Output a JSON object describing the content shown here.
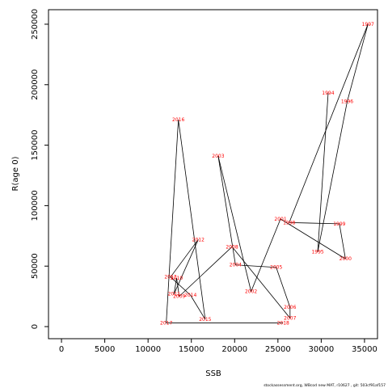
{
  "chart_data": {
    "type": "line",
    "xlabel": "SSB",
    "ylabel": "R(age 0)",
    "xlim": [
      -1500,
      36500
    ],
    "ylim": [
      -10000,
      262000
    ],
    "x_ticks": [
      0,
      5000,
      10000,
      15000,
      20000,
      25000,
      30000,
      35000
    ],
    "y_ticks": [
      0,
      50000,
      100000,
      150000,
      200000,
      250000
    ],
    "line_color": "#000000",
    "label_color": "#ff0000",
    "points": [
      {
        "year": "1994",
        "x": 30800,
        "y": 193000
      },
      {
        "year": "1995",
        "x": 29600,
        "y": 62000
      },
      {
        "year": "1996",
        "x": 33000,
        "y": 186000
      },
      {
        "year": "1997",
        "x": 35400,
        "y": 250000
      },
      {
        "year": "1998",
        "x": 26300,
        "y": 86000
      },
      {
        "year": "1999",
        "x": 32100,
        "y": 85000
      },
      {
        "year": "2000",
        "x": 32800,
        "y": 56000
      },
      {
        "year": "2001",
        "x": 25300,
        "y": 89000
      },
      {
        "year": "2002",
        "x": 21900,
        "y": 29000
      },
      {
        "year": "2003",
        "x": 18100,
        "y": 141000
      },
      {
        "year": "2004",
        "x": 20100,
        "y": 51000
      },
      {
        "year": "2005",
        "x": 24800,
        "y": 49000
      },
      {
        "year": "2006",
        "x": 26400,
        "y": 16000
      },
      {
        "year": "2007",
        "x": 26400,
        "y": 7000
      },
      {
        "year": "2008",
        "x": 19700,
        "y": 66000
      },
      {
        "year": "2009",
        "x": 13600,
        "y": 25000
      },
      {
        "year": "2010",
        "x": 13300,
        "y": 40000
      },
      {
        "year": "2011",
        "x": 13000,
        "y": 27000
      },
      {
        "year": "2012",
        "x": 15800,
        "y": 72000
      },
      {
        "year": "2013",
        "x": 12600,
        "y": 41000
      },
      {
        "year": "2014",
        "x": 14900,
        "y": 26000
      },
      {
        "year": "2015",
        "x": 16600,
        "y": 6000
      },
      {
        "year": "2016",
        "x": 13500,
        "y": 171000
      },
      {
        "year": "2017",
        "x": 12100,
        "y": 3000
      },
      {
        "year": "2018",
        "x": 25600,
        "y": 3000
      }
    ],
    "credit": "stockassessment.org, WBcod new MAT, r10627 , git: 503cf91af157"
  }
}
